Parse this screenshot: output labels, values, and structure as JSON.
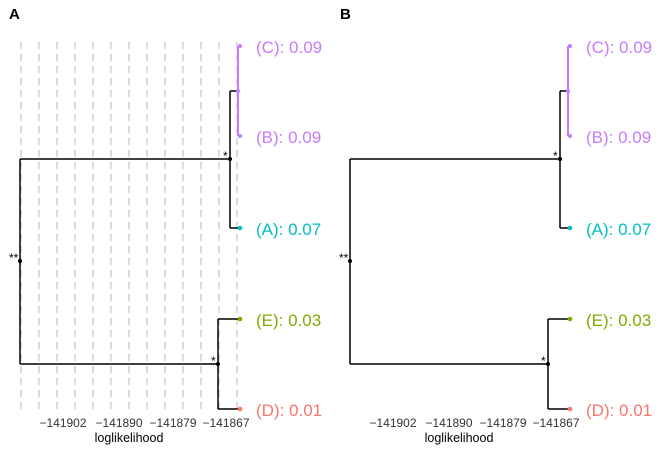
{
  "colors": {
    "C": "#c77cff",
    "B": "#c77cff",
    "A": "#00bfc4",
    "E": "#7cae00",
    "D": "#f8766d",
    "branch": "#000000",
    "grid": "#c8c8c8"
  },
  "panels": [
    {
      "letter": "A",
      "show_grid": true,
      "tips": [
        {
          "label": "(C): 0.09"
        },
        {
          "label": "(B): 0.09"
        },
        {
          "label": "(A): 0.07"
        },
        {
          "label": "(E): 0.03"
        },
        {
          "label": "(D): 0.01"
        }
      ],
      "node_labels": {
        "root": "**",
        "cab": "*",
        "ed": "*"
      },
      "axis": {
        "ticks": [
          "−141902",
          "−141890",
          "−141879",
          "−141867"
        ],
        "title": "loglikelihood"
      }
    },
    {
      "letter": "B",
      "show_grid": false,
      "tips": [
        {
          "label": "(C): 0.09"
        },
        {
          "label": "(B): 0.09"
        },
        {
          "label": "(A): 0.07"
        },
        {
          "label": "(E): 0.03"
        },
        {
          "label": "(D): 0.01"
        }
      ],
      "node_labels": {
        "root": "**",
        "cab": "*",
        "ed": "*"
      },
      "axis": {
        "ticks": [
          "−141902",
          "−141890",
          "−141879",
          "−141867"
        ],
        "title": "loglikelihood"
      }
    }
  ]
}
